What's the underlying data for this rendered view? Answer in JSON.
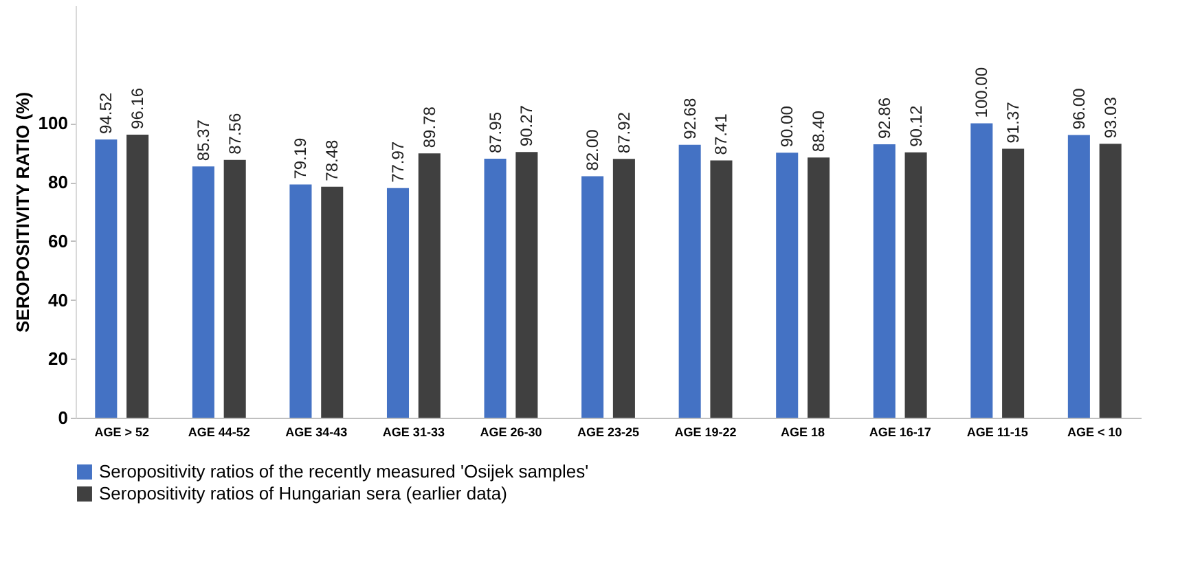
{
  "chart_data": {
    "type": "bar",
    "ylabel": "SEROPOSITIVITY RATIO (%)",
    "categories": [
      "AGE > 52",
      "AGE 44-52",
      "AGE 34-43",
      "AGE 31-33",
      "AGE 26-30",
      "AGE 23-25",
      "AGE 19-22",
      "AGE 18",
      "AGE 16-17",
      "AGE 11-15",
      "AGE < 10"
    ],
    "series": [
      {
        "name": "Seropositivity ratios of the recently measured 'Osijek samples'",
        "color": "#4472c4",
        "values": [
          94.52,
          85.37,
          79.19,
          77.97,
          87.95,
          82.0,
          92.68,
          90.0,
          92.86,
          100.0,
          96.0
        ],
        "value_labels": [
          "94.52",
          "85.37",
          "79.19",
          "77.97",
          "87.95",
          "82.00",
          "92.68",
          "90.00",
          "92.86",
          "100.00",
          "96.00"
        ]
      },
      {
        "name": "Seropositivity ratios of Hungarian sera (earlier data)",
        "color": "#404040",
        "values": [
          96.16,
          87.56,
          78.48,
          89.78,
          90.27,
          87.92,
          87.41,
          88.4,
          90.12,
          91.37,
          93.03
        ],
        "value_labels": [
          "96.16",
          "87.56",
          "78.48",
          "89.78",
          "90.27",
          "87.92",
          "87.41",
          "88.40",
          "90.12",
          "91.37",
          "93.03"
        ]
      }
    ],
    "ylim": [
      0,
      140
    ],
    "yticks": [
      0,
      20,
      40,
      60,
      80,
      100
    ],
    "grid": false,
    "legend": "bottom"
  }
}
